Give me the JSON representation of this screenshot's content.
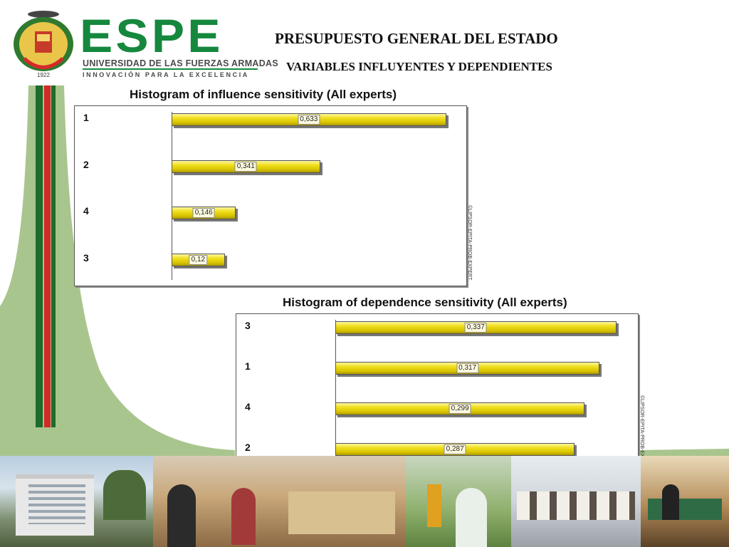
{
  "header": {
    "logo_text": "ESPE",
    "logo_subtitle": "UNIVERSIDAD DE LAS FUERZAS ARMADAS",
    "logo_slogan": "INNOVACIÓN PARA LA EXCELENCIA",
    "seal_text": "1922 ECUADOR",
    "title": "PRESUPUESTO GENERAL DEL ESTADO",
    "subtitle": "VARIABLES INFLUYENTES Y DEPENDIENTES"
  },
  "colors": {
    "brand_green": "#15883e",
    "bar_yellow": "#e8d400",
    "flag_red": "#d42a2a"
  },
  "chart_data": [
    {
      "type": "bar",
      "orientation": "horizontal",
      "title": "Histogram of influence sensitivity (All experts)",
      "categories": [
        "1",
        "2",
        "4",
        "3"
      ],
      "values": [
        0.633,
        0.341,
        0.146,
        0.12
      ],
      "value_labels": [
        "0,633",
        "0,341",
        "0,146",
        "0,12"
      ],
      "credit": "©LIPSOR-EPITA-PROB-EXPERT"
    },
    {
      "type": "bar",
      "orientation": "horizontal",
      "title": "Histogram of dependence sensitivity (All experts)",
      "categories": [
        "3",
        "1",
        "4",
        "2"
      ],
      "values": [
        0.337,
        0.317,
        0.299,
        0.287
      ],
      "value_labels": [
        "0,337",
        "0,317",
        "0,299",
        "0,287"
      ],
      "credit": "©LIPSOR-EPITA-PROB-EXPERT"
    }
  ],
  "photos": [
    "campus-building",
    "students-classroom",
    "survey-instrument",
    "colonial-courtyard",
    "library-students"
  ]
}
